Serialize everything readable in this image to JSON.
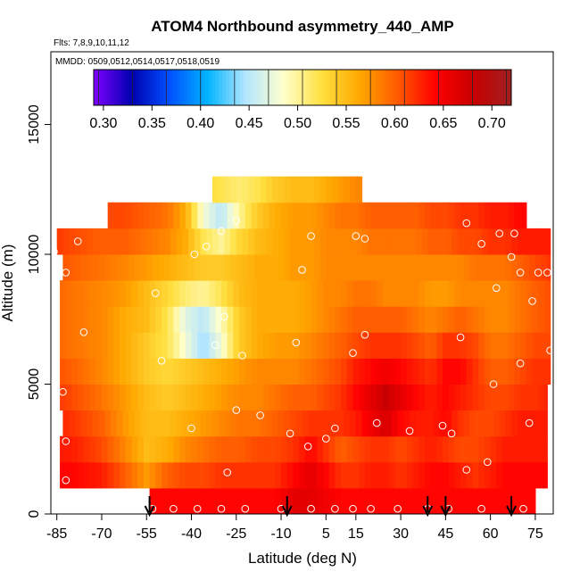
{
  "chart_data": {
    "type": "heatmap",
    "title": "ATOM4 Northbound asymmetry_440_AMP",
    "subtitle_flights": "Flts: 7,8,9,10,11,12",
    "subtitle_dates": "MMDD: 0509,0512,0514,0517,0518,0519",
    "xlabel": "Latitude (deg N)",
    "ylabel": "Altitude (m)",
    "xlim": [
      -87,
      81
    ],
    "ylim": [
      0,
      17800
    ],
    "x_ticks": [
      -85,
      -70,
      -55,
      -40,
      -25,
      -10,
      5,
      15,
      30,
      45,
      60,
      75
    ],
    "x_tick_labels": [
      "-85",
      "-70",
      "-55",
      "-40",
      "-25",
      "-10",
      "5",
      "15",
      "30",
      "45",
      "60",
      "75"
    ],
    "y_ticks": [
      0,
      5000,
      10000,
      15000
    ],
    "y_tick_labels": [
      "0",
      "5000",
      "10000",
      "15000"
    ],
    "colorbar": {
      "min": 0.29,
      "max": 0.72,
      "ticks": [
        0.3,
        0.35,
        0.4,
        0.45,
        0.5,
        0.55,
        0.6,
        0.65,
        0.7
      ],
      "tick_labels": [
        "0.30",
        "0.35",
        "0.40",
        "0.45",
        "0.50",
        "0.55",
        "0.60",
        "0.65",
        "0.70"
      ],
      "colors": [
        "#7f00ff",
        "#0000b0",
        "#0050ff",
        "#00b4ff",
        "#b4e6ff",
        "#ffffcc",
        "#ffe040",
        "#ffa800",
        "#ff5a00",
        "#ff0000",
        "#c80000",
        "#a02020"
      ]
    },
    "altitude_rows_m": [
      0,
      1000,
      2000,
      3000,
      4000,
      5000,
      6000,
      7000,
      8000,
      9000,
      10000,
      11000,
      12000
    ],
    "latitude_nodes": [
      -87,
      -80,
      -70,
      -62,
      -55,
      -48,
      -42,
      -36,
      -30,
      -24,
      -18,
      -12,
      -6,
      0,
      5,
      10,
      15,
      20,
      25,
      30,
      35,
      40,
      45,
      50,
      55,
      60,
      65,
      70,
      75,
      81
    ],
    "grid_values": [
      [
        0.64,
        0.64,
        0.64,
        0.64,
        0.64,
        0.64,
        0.64,
        0.64,
        0.64,
        0.64,
        0.64,
        0.64,
        0.66,
        0.66,
        0.65,
        0.64,
        0.64,
        0.64,
        0.64,
        0.64,
        0.64,
        0.64,
        0.64,
        0.64,
        0.64,
        0.64,
        0.64,
        0.64,
        0.64,
        0.64
      ],
      [
        0.64,
        0.64,
        0.63,
        0.6,
        0.57,
        0.6,
        0.61,
        0.61,
        0.62,
        0.62,
        0.62,
        0.62,
        0.64,
        0.66,
        0.64,
        0.62,
        0.62,
        0.63,
        0.63,
        0.62,
        0.63,
        0.64,
        0.64,
        0.63,
        0.62,
        0.63,
        0.64,
        0.64,
        0.64,
        0.64
      ],
      [
        0.63,
        0.63,
        0.61,
        0.58,
        0.55,
        0.56,
        0.58,
        0.59,
        0.6,
        0.6,
        0.61,
        0.61,
        0.62,
        0.64,
        0.62,
        0.6,
        0.61,
        0.62,
        0.62,
        0.61,
        0.62,
        0.63,
        0.62,
        0.61,
        0.61,
        0.62,
        0.63,
        0.63,
        0.63,
        0.63
      ],
      [
        0.63,
        0.62,
        0.6,
        0.57,
        0.55,
        0.55,
        0.56,
        0.57,
        0.58,
        0.59,
        0.59,
        0.6,
        0.61,
        0.62,
        0.62,
        0.62,
        0.63,
        0.65,
        0.67,
        0.64,
        0.63,
        0.63,
        0.64,
        0.62,
        0.61,
        0.61,
        0.62,
        0.63,
        0.63,
        0.63
      ],
      [
        0.62,
        0.61,
        0.59,
        0.57,
        0.55,
        0.54,
        0.55,
        0.56,
        0.57,
        0.58,
        0.58,
        0.59,
        0.6,
        0.6,
        0.61,
        0.62,
        0.64,
        0.66,
        0.68,
        0.66,
        0.64,
        0.63,
        0.64,
        0.63,
        0.62,
        0.61,
        0.61,
        0.62,
        0.62,
        0.63
      ],
      [
        0.61,
        0.6,
        0.58,
        0.56,
        0.54,
        0.53,
        0.54,
        0.55,
        0.56,
        0.57,
        0.58,
        0.58,
        0.58,
        0.59,
        0.6,
        0.61,
        0.63,
        0.64,
        0.65,
        0.64,
        0.63,
        0.62,
        0.64,
        0.64,
        0.62,
        0.6,
        0.6,
        0.61,
        0.62,
        0.62
      ],
      [
        0.6,
        0.59,
        0.58,
        0.56,
        0.54,
        0.52,
        0.48,
        0.44,
        0.48,
        0.54,
        0.56,
        0.57,
        0.57,
        0.58,
        0.59,
        0.6,
        0.61,
        0.62,
        0.62,
        0.62,
        0.61,
        0.6,
        0.62,
        0.62,
        0.61,
        0.59,
        0.59,
        0.6,
        0.61,
        0.61
      ],
      [
        0.6,
        0.59,
        0.58,
        0.56,
        0.55,
        0.52,
        0.47,
        0.45,
        0.49,
        0.54,
        0.56,
        0.56,
        0.56,
        0.57,
        0.58,
        0.59,
        0.6,
        0.6,
        0.6,
        0.6,
        0.59,
        0.58,
        0.59,
        0.6,
        0.59,
        0.58,
        0.58,
        0.59,
        0.6,
        0.61
      ],
      [
        0.6,
        0.59,
        0.58,
        0.57,
        0.55,
        0.53,
        0.51,
        0.5,
        0.52,
        0.55,
        0.56,
        0.56,
        0.56,
        0.57,
        0.58,
        0.58,
        0.59,
        0.59,
        0.58,
        0.58,
        0.58,
        0.57,
        0.57,
        0.58,
        0.58,
        0.58,
        0.58,
        0.59,
        0.6,
        0.61
      ],
      [
        0.61,
        0.6,
        0.59,
        0.58,
        0.57,
        0.56,
        0.55,
        0.54,
        0.54,
        0.55,
        0.56,
        0.56,
        0.57,
        0.57,
        0.58,
        0.58,
        0.58,
        0.58,
        0.58,
        0.58,
        0.58,
        0.58,
        0.58,
        0.58,
        0.59,
        0.59,
        0.59,
        0.6,
        0.61,
        0.62
      ],
      [
        0.62,
        0.61,
        0.6,
        0.6,
        0.59,
        0.58,
        0.56,
        0.52,
        0.5,
        0.53,
        0.55,
        0.56,
        0.57,
        0.57,
        0.58,
        0.58,
        0.58,
        0.59,
        0.59,
        0.59,
        0.59,
        0.6,
        0.6,
        0.61,
        0.61,
        0.62,
        0.62,
        0.63,
        0.63,
        0.63
      ],
      [
        0.62,
        0.62,
        0.61,
        0.61,
        0.6,
        0.59,
        0.56,
        0.48,
        0.45,
        0.5,
        0.54,
        0.56,
        0.57,
        0.57,
        0.58,
        0.59,
        0.59,
        0.6,
        0.6,
        0.6,
        0.6,
        0.61,
        0.61,
        0.62,
        0.62,
        0.63,
        0.63,
        0.64,
        0.64,
        0.64
      ],
      [
        0.6,
        0.6,
        0.6,
        0.6,
        0.6,
        0.58,
        0.55,
        0.53,
        0.52,
        0.51,
        0.52,
        0.54,
        0.55,
        0.55,
        0.56,
        0.57,
        0.58,
        0.58,
        0.58,
        0.58,
        0.58,
        0.58,
        0.58,
        0.58,
        0.58,
        0.58,
        0.58,
        0.58,
        0.58,
        0.58
      ]
    ],
    "row_extent_lat": [
      [
        -54,
        75
      ],
      [
        -84,
        79
      ],
      [
        -84,
        79
      ],
      [
        -83,
        79
      ],
      [
        -84,
        79
      ],
      [
        -84,
        80
      ],
      [
        -84,
        80
      ],
      [
        -84,
        80
      ],
      [
        -84,
        80
      ],
      [
        -83,
        80
      ],
      [
        -85,
        80
      ],
      [
        -68,
        72
      ],
      [
        -33,
        17
      ]
    ],
    "sample_points": [
      {
        "lat": -78,
        "alt": 10500
      },
      {
        "lat": -86,
        "alt": 10100
      },
      {
        "lat": -82,
        "alt": 9300
      },
      {
        "lat": -76,
        "alt": 7000
      },
      {
        "lat": -83,
        "alt": 4700
      },
      {
        "lat": -82,
        "alt": 2800
      },
      {
        "lat": -82,
        "alt": 1300
      },
      {
        "lat": -52,
        "alt": 8500
      },
      {
        "lat": -39,
        "alt": 10000
      },
      {
        "lat": -35,
        "alt": 10300
      },
      {
        "lat": -30,
        "alt": 10900
      },
      {
        "lat": -25,
        "alt": 11300
      },
      {
        "lat": -29,
        "alt": 7600
      },
      {
        "lat": -32,
        "alt": 6500
      },
      {
        "lat": -23,
        "alt": 6100
      },
      {
        "lat": -50,
        "alt": 5900
      },
      {
        "lat": -25,
        "alt": 4000
      },
      {
        "lat": -17,
        "alt": 3800
      },
      {
        "lat": -40,
        "alt": 3300
      },
      {
        "lat": -28,
        "alt": 1600
      },
      {
        "lat": -7,
        "alt": 3100
      },
      {
        "lat": -1,
        "alt": 2600
      },
      {
        "lat": 5,
        "alt": 2900
      },
      {
        "lat": 8,
        "alt": 3300
      },
      {
        "lat": -5,
        "alt": 6600
      },
      {
        "lat": 14,
        "alt": 6200
      },
      {
        "lat": 18,
        "alt": 6900
      },
      {
        "lat": 22,
        "alt": 3500
      },
      {
        "lat": 33,
        "alt": 3200
      },
      {
        "lat": 44,
        "alt": 3400
      },
      {
        "lat": 47,
        "alt": 3100
      },
      {
        "lat": 50,
        "alt": 6800
      },
      {
        "lat": -3,
        "alt": 9400
      },
      {
        "lat": 0,
        "alt": 10700
      },
      {
        "lat": 15,
        "alt": 10700
      },
      {
        "lat": 18,
        "alt": 10600
      },
      {
        "lat": 52,
        "alt": 11200
      },
      {
        "lat": 57,
        "alt": 10400
      },
      {
        "lat": 63,
        "alt": 10800
      },
      {
        "lat": 68,
        "alt": 10800
      },
      {
        "lat": 67,
        "alt": 9900
      },
      {
        "lat": 70,
        "alt": 9300
      },
      {
        "lat": 76,
        "alt": 9300
      },
      {
        "lat": 79,
        "alt": 9300
      },
      {
        "lat": 62,
        "alt": 8700
      },
      {
        "lat": 74,
        "alt": 8200
      },
      {
        "lat": 80,
        "alt": 6300
      },
      {
        "lat": 70,
        "alt": 5800
      },
      {
        "lat": 61,
        "alt": 5000
      },
      {
        "lat": 73,
        "alt": 3500
      },
      {
        "lat": 59,
        "alt": 2000
      },
      {
        "lat": 52,
        "alt": 1700
      },
      {
        "lat": -53,
        "alt": 200
      },
      {
        "lat": -46,
        "alt": 200
      },
      {
        "lat": -38,
        "alt": 200
      },
      {
        "lat": -30,
        "alt": 200
      },
      {
        "lat": -22,
        "alt": 200
      },
      {
        "lat": -10,
        "alt": 200
      },
      {
        "lat": 0,
        "alt": 200
      },
      {
        "lat": 8,
        "alt": 200
      },
      {
        "lat": 14,
        "alt": 200
      },
      {
        "lat": 20,
        "alt": 200
      },
      {
        "lat": 29,
        "alt": 200
      },
      {
        "lat": 39,
        "alt": 200
      },
      {
        "lat": 46,
        "alt": 200
      },
      {
        "lat": 57,
        "alt": 200
      },
      {
        "lat": 71,
        "alt": 200
      },
      {
        "lat": 77,
        "alt": 200
      }
    ],
    "profile_arrows_lat": [
      -54,
      -8,
      39,
      45,
      67
    ]
  }
}
